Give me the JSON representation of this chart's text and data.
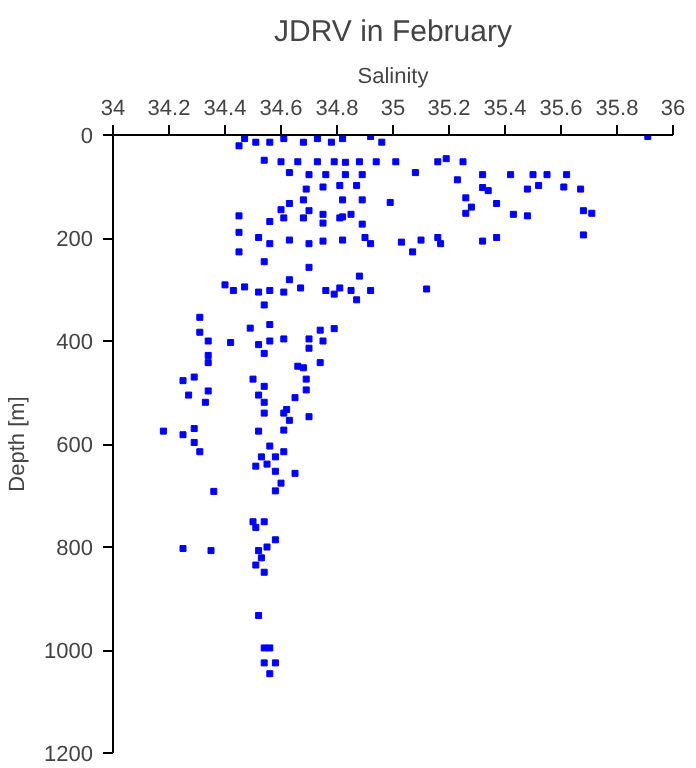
{
  "chart_data": {
    "type": "scatter",
    "title": "JDRV in February",
    "xlabel": "Salinity",
    "ylabel": "Depth [m]",
    "xlim": [
      34,
      36
    ],
    "ylim": [
      1200,
      0
    ],
    "xticks": [
      34,
      34.2,
      34.4,
      34.6,
      34.8,
      35,
      35.2,
      35.4,
      35.6,
      35.8,
      36
    ],
    "yticks": [
      0,
      200,
      400,
      600,
      800,
      1000,
      1200
    ],
    "grid": false,
    "marker": "square",
    "series": [
      {
        "color": "#0000ff",
        "x": [
          34.45,
          34.47,
          34.51,
          34.56,
          34.61,
          34.68,
          34.73,
          34.78,
          34.82,
          34.92,
          34.96,
          35.91,
          34.54,
          34.6,
          34.66,
          34.73,
          34.79,
          34.83,
          34.88,
          34.94,
          35.01,
          35.16,
          35.19,
          35.25,
          34.63,
          34.7,
          34.76,
          34.83,
          34.89,
          35.08,
          35.32,
          35.42,
          35.5,
          35.55,
          35.62,
          35.23,
          34.69,
          34.75,
          34.81,
          34.87,
          35.32,
          35.34,
          35.48,
          35.52,
          35.61,
          35.67,
          34.68,
          34.82,
          34.89,
          34.99,
          35.26,
          35.37,
          35.28,
          35.26,
          35.43,
          35.48,
          35.68,
          35.71,
          34.6,
          34.63,
          34.7,
          34.75,
          34.82,
          34.45,
          34.56,
          34.61,
          34.68,
          34.75,
          34.81,
          34.85,
          34.89,
          35.68,
          34.45,
          34.52,
          34.56,
          34.63,
          34.7,
          34.75,
          34.82,
          34.9,
          34.92,
          35.03,
          35.1,
          35.16,
          35.17,
          35.32,
          35.37,
          34.45,
          35.07,
          34.54,
          34.7,
          34.63,
          34.4,
          34.43,
          34.47,
          34.52,
          34.56,
          34.61,
          34.67,
          34.76,
          34.81,
          34.85,
          34.88,
          34.92,
          35.12,
          34.54,
          34.87,
          34.79,
          34.31,
          34.49,
          34.56,
          34.79,
          34.31,
          34.74,
          34.34,
          34.42,
          34.52,
          34.56,
          34.61,
          34.7,
          34.75,
          34.34,
          34.54,
          34.7,
          34.34,
          34.66,
          34.68,
          34.74,
          34.29,
          34.25,
          34.5,
          34.54,
          34.69,
          34.34,
          34.69,
          34.27,
          34.33,
          34.52,
          34.54,
          34.54,
          34.62,
          34.61,
          34.65,
          34.7,
          34.63,
          34.18,
          34.25,
          34.29,
          34.29,
          34.31,
          34.52,
          34.61,
          34.56,
          34.53,
          34.55,
          34.51,
          34.58,
          34.61,
          34.58,
          34.65,
          34.6,
          34.58,
          34.36,
          34.5,
          34.54,
          34.51,
          34.58,
          34.25,
          34.35,
          34.52,
          34.55,
          34.53,
          34.51,
          34.54,
          34.52,
          34.54,
          34.56,
          34.54,
          34.58,
          34.56
        ],
        "values": [
          21,
          7,
          14,
          14,
          7,
          14,
          7,
          14,
          7,
          3,
          14,
          3,
          49,
          52,
          52,
          52,
          52,
          53,
          52,
          52,
          52,
          52,
          46,
          52,
          73,
          77,
          77,
          77,
          77,
          73,
          77,
          77,
          77,
          77,
          77,
          87,
          105,
          101,
          98,
          98,
          102,
          108,
          105,
          98,
          101,
          105,
          126,
          126,
          126,
          131,
          122,
          133,
          140,
          152,
          154,
          157,
          147,
          152,
          145,
          133,
          147,
          154,
          159,
          157,
          168,
          161,
          161,
          171,
          161,
          154,
          173,
          194,
          189,
          199,
          211,
          204,
          211,
          206,
          204,
          199,
          211,
          208,
          204,
          199,
          211,
          206,
          199,
          227,
          227,
          246,
          257,
          281,
          291,
          302,
          295,
          305,
          302,
          305,
          297,
          302,
          297,
          302,
          274,
          302,
          299,
          330,
          320,
          309,
          354,
          375,
          368,
          376,
          383,
          379,
          400,
          403,
          407,
          400,
          396,
          396,
          400,
          428,
          424,
          414,
          442,
          449,
          452,
          442,
          470,
          477,
          474,
          488,
          474,
          497,
          495,
          505,
          519,
          505,
          519,
          540,
          533,
          540,
          510,
          547,
          554,
          575,
          582,
          570,
          597,
          615,
          575,
          573,
          604,
          625,
          639,
          643,
          625,
          615,
          653,
          657,
          676,
          691,
          692,
          751,
          751,
          762,
          786,
          803,
          807,
          807,
          800,
          821,
          835,
          849,
          933,
          996,
          996,
          1025,
          1025,
          1046
        ]
      }
    ]
  }
}
